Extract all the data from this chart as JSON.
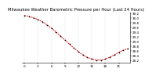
{
  "title": "Milwaukee Weather Barometric Pressure per Hour (Last 24 Hours)",
  "hours": [
    0,
    1,
    2,
    3,
    4,
    5,
    6,
    7,
    8,
    9,
    10,
    11,
    12,
    13,
    14,
    15,
    16,
    17,
    18,
    19,
    20,
    21,
    22,
    23
  ],
  "pressure": [
    30.12,
    30.08,
    30.02,
    29.95,
    29.85,
    29.72,
    29.58,
    29.42,
    29.25,
    29.08,
    28.9,
    28.73,
    28.58,
    28.44,
    28.33,
    28.26,
    28.22,
    28.22,
    28.26,
    28.34,
    28.44,
    28.55,
    28.64,
    28.7
  ],
  "ylim_min": 28.1,
  "ylim_max": 30.25,
  "ytick_values": [
    28.2,
    28.4,
    28.6,
    28.8,
    29.0,
    29.2,
    29.4,
    29.6,
    29.8,
    30.0,
    30.2
  ],
  "xtick_every": 3,
  "line_color": "#dd0000",
  "marker_color": "#000000",
  "grid_color": "#bbbbbb",
  "bg_color": "#ffffff",
  "text_color": "#000000",
  "title_fontsize": 3.8,
  "tick_fontsize": 3.0,
  "line_width": 0.7,
  "marker_size": 1.5
}
